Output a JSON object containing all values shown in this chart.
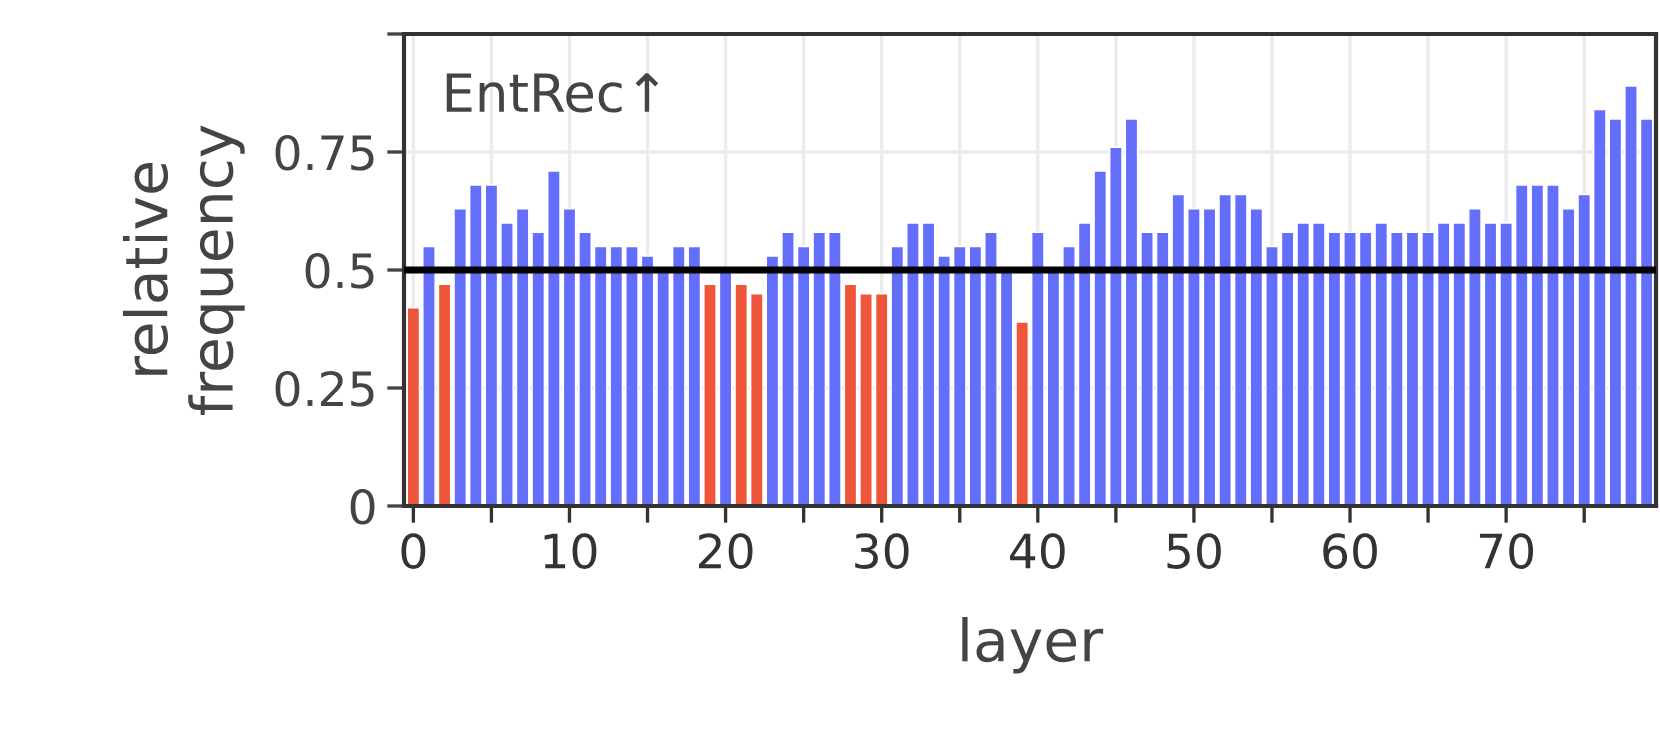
{
  "chart_data": {
    "type": "bar",
    "title": "EntRec↑",
    "xlabel": "layer",
    "ylabel": "relative\nfrequency",
    "x": [
      0,
      1,
      2,
      3,
      4,
      5,
      6,
      7,
      8,
      9,
      10,
      11,
      12,
      13,
      14,
      15,
      16,
      17,
      18,
      19,
      20,
      21,
      22,
      23,
      24,
      25,
      26,
      27,
      28,
      29,
      30,
      31,
      32,
      33,
      34,
      35,
      36,
      37,
      38,
      39,
      40,
      41,
      42,
      43,
      44,
      45,
      46,
      47,
      48,
      49,
      50,
      51,
      52,
      53,
      54,
      55,
      56,
      57,
      58,
      59,
      60,
      61,
      62,
      63,
      64,
      65,
      66,
      67,
      68,
      69,
      70,
      71,
      72,
      73,
      74,
      75,
      76,
      77,
      78,
      79
    ],
    "values": [
      0.42,
      0.55,
      0.47,
      0.63,
      0.68,
      0.68,
      0.6,
      0.63,
      0.58,
      0.71,
      0.63,
      0.58,
      0.55,
      0.55,
      0.55,
      0.53,
      0.5,
      0.55,
      0.55,
      0.47,
      0.5,
      0.47,
      0.45,
      0.53,
      0.58,
      0.55,
      0.58,
      0.58,
      0.47,
      0.45,
      0.45,
      0.55,
      0.6,
      0.6,
      0.53,
      0.55,
      0.55,
      0.58,
      0.5,
      0.39,
      0.58,
      0.5,
      0.55,
      0.6,
      0.71,
      0.76,
      0.82,
      0.58,
      0.58,
      0.66,
      0.63,
      0.63,
      0.66,
      0.66,
      0.63,
      0.55,
      0.58,
      0.6,
      0.6,
      0.58,
      0.58,
      0.58,
      0.6,
      0.58,
      0.58,
      0.58,
      0.6,
      0.6,
      0.63,
      0.6,
      0.6,
      0.68,
      0.68,
      0.68,
      0.63,
      0.66,
      0.84,
      0.82,
      0.89,
      0.82
    ],
    "colors": [
      "#ef553b",
      "#636efa",
      "#ef553b",
      "#636efa",
      "#636efa",
      "#636efa",
      "#636efa",
      "#636efa",
      "#636efa",
      "#636efa",
      "#636efa",
      "#636efa",
      "#636efa",
      "#636efa",
      "#636efa",
      "#636efa",
      "#636efa",
      "#636efa",
      "#636efa",
      "#ef553b",
      "#636efa",
      "#ef553b",
      "#ef553b",
      "#636efa",
      "#636efa",
      "#636efa",
      "#636efa",
      "#636efa",
      "#ef553b",
      "#ef553b",
      "#ef553b",
      "#636efa",
      "#636efa",
      "#636efa",
      "#636efa",
      "#636efa",
      "#636efa",
      "#636efa",
      "#636efa",
      "#ef553b",
      "#636efa",
      "#636efa",
      "#636efa",
      "#636efa",
      "#636efa",
      "#636efa",
      "#636efa",
      "#636efa",
      "#636efa",
      "#636efa",
      "#636efa",
      "#636efa",
      "#636efa",
      "#636efa",
      "#636efa",
      "#636efa",
      "#636efa",
      "#636efa",
      "#636efa",
      "#636efa",
      "#636efa",
      "#636efa",
      "#636efa",
      "#636efa",
      "#636efa",
      "#636efa",
      "#636efa",
      "#636efa",
      "#636efa",
      "#636efa",
      "#636efa",
      "#636efa",
      "#636efa",
      "#636efa",
      "#636efa",
      "#636efa",
      "#636efa",
      "#636efa",
      "#636efa",
      "#636efa"
    ],
    "xlim": [
      -0.6,
      79.6
    ],
    "xticks": [
      0,
      {
        "value": 5,
        "label": null
      },
      10,
      {
        "value": 15,
        "label": null
      },
      20,
      {
        "value": 25,
        "label": null
      },
      30,
      {
        "value": 35,
        "label": null
      },
      40,
      {
        "value": 45,
        "label": null
      },
      50,
      {
        "value": 55,
        "label": null
      },
      60,
      {
        "value": 65,
        "label": null
      },
      70,
      {
        "value": 75,
        "label": null
      }
    ],
    "ylim": [
      0,
      1
    ],
    "yticks": [
      0,
      0.25,
      0.5,
      0.75,
      {
        "value": 1,
        "label": null
      }
    ],
    "ref_lines": [
      {
        "axis": "y",
        "value": 0.5,
        "color": "#000000"
      }
    ],
    "grid": true,
    "legend": false
  }
}
